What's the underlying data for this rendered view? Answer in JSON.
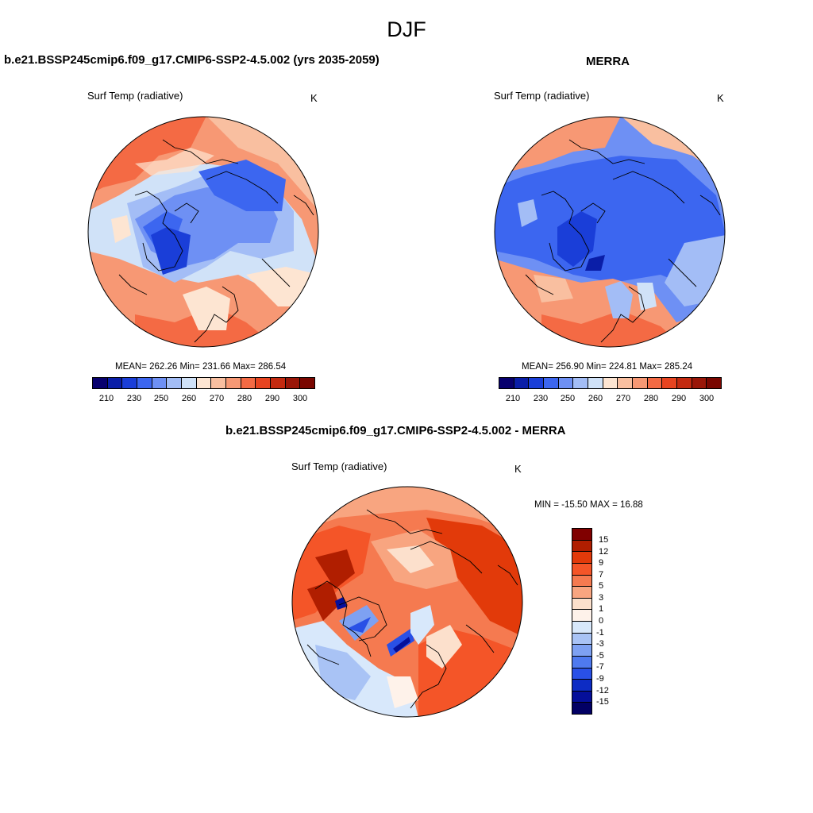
{
  "main_title": "DJF",
  "panels": [
    {
      "title": "b.e21.BSSP245cmip6.f09_g17.CMIP6-SSP2-4.5.002 (yrs 2035-2059)",
      "variable": "Surf Temp (radiative)",
      "units": "K",
      "stats": "MEAN= 262.26  Min= 231.66  Max= 286.54",
      "colorbar_labels": [
        "210",
        "230",
        "250",
        "260",
        "270",
        "280",
        "290",
        "300"
      ]
    },
    {
      "title": "MERRA",
      "variable": "Surf Temp (radiative)",
      "units": "K",
      "stats": "MEAN= 256.90  Min= 224.81  Max= 285.24",
      "colorbar_labels": [
        "210",
        "230",
        "250",
        "260",
        "270",
        "280",
        "290",
        "300"
      ]
    },
    {
      "title": "b.e21.BSSP245cmip6.f09_g17.CMIP6-SSP2-4.5.002 - MERRA",
      "variable": "Surf Temp (radiative)",
      "units": "K",
      "stats": "MIN = -15.50 MAX =  16.88",
      "colorbar_labels": [
        "15",
        "12",
        "9",
        "7",
        "5",
        "3",
        "1",
        "0",
        "-1",
        "-3",
        "-5",
        "-7",
        "-9",
        "-12",
        "-15"
      ]
    }
  ],
  "colors": {
    "abs_scale": [
      "#08006e",
      "#0a1ea8",
      "#1a3ed8",
      "#3c66f0",
      "#6e90f4",
      "#a3bdf6",
      "#d0e2f8",
      "#fde5d2",
      "#f9bfa0",
      "#f79874",
      "#f46a44",
      "#e84420",
      "#c42a10",
      "#9a1608",
      "#7a0600"
    ],
    "diff_scale": [
      "#800000",
      "#b01e00",
      "#e23a0a",
      "#f45528",
      "#f57a50",
      "#f8a580",
      "#fce0cc",
      "#fef2ea",
      "#d8e8fb",
      "#a9c3f5",
      "#7ea1f2",
      "#4f7aef",
      "#2950e6",
      "#0d2cc4",
      "#050f9a",
      "#020064"
    ]
  }
}
